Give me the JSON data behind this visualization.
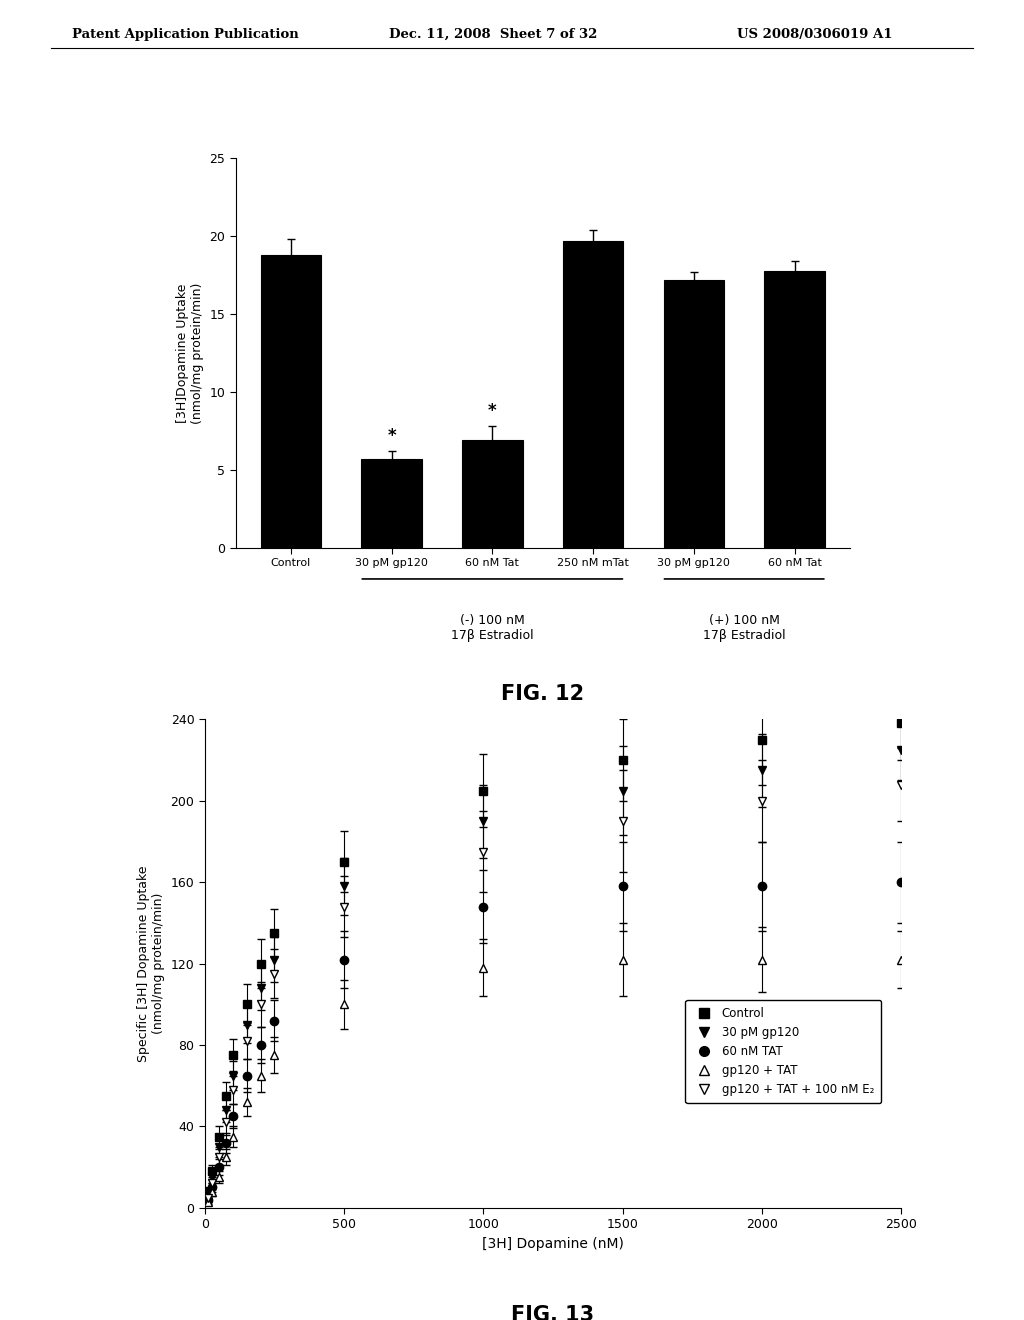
{
  "header_left": "Patent Application Publication",
  "header_mid": "Dec. 11, 2008  Sheet 7 of 32",
  "header_right": "US 2008/0306019 A1",
  "fig12": {
    "categories": [
      "Control",
      "30 pM gp120",
      "60 nM Tat",
      "250 nM mTat",
      "30 pM gp120",
      "60 nM Tat"
    ],
    "values": [
      18.8,
      5.7,
      6.9,
      19.7,
      17.2,
      17.8
    ],
    "errors": [
      1.0,
      0.5,
      0.9,
      0.7,
      0.5,
      0.6
    ],
    "star": [
      false,
      true,
      true,
      false,
      false,
      false
    ],
    "ylabel": "[3H]Dopamine Uptake\n(nmol/mg protein/min)",
    "ylim": [
      0,
      25
    ],
    "yticks": [
      0,
      5,
      10,
      15,
      20,
      25
    ],
    "group1_label": "(-) 100 nM\n17β Estradiol",
    "group2_label": "(+) 100 nM\n17β Estradiol"
  },
  "fig13": {
    "xlabel": "[3H] Dopamine (nM)",
    "ylabel": "Specific [3H] Dopamine Uptake\n(nmol/mg protein/min)",
    "xlim": [
      0,
      2500
    ],
    "ylim": [
      0,
      240
    ],
    "xticks": [
      0,
      500,
      1000,
      1500,
      2000,
      2500
    ],
    "yticks": [
      0,
      40,
      80,
      120,
      160,
      200,
      240
    ],
    "series": [
      {
        "label": "Control",
        "marker": "s",
        "filled": true,
        "x": [
          10,
          25,
          50,
          75,
          100,
          150,
          200,
          250,
          500,
          1000,
          1500,
          2000,
          2500
        ],
        "y": [
          8,
          18,
          35,
          55,
          75,
          100,
          120,
          135,
          170,
          205,
          220,
          230,
          238
        ],
        "yerr": [
          2,
          3,
          5,
          7,
          8,
          10,
          12,
          12,
          15,
          18,
          20,
          22,
          18
        ]
      },
      {
        "label": "30 pM gp120",
        "marker": "v",
        "filled": true,
        "x": [
          10,
          25,
          50,
          75,
          100,
          150,
          200,
          250,
          500,
          1000,
          1500,
          2000,
          2500
        ],
        "y": [
          7,
          15,
          30,
          48,
          65,
          90,
          108,
          122,
          158,
          190,
          205,
          215,
          225
        ],
        "yerr": [
          2,
          3,
          5,
          6,
          7,
          9,
          11,
          11,
          14,
          18,
          22,
          18,
          15
        ]
      },
      {
        "label": "60 nM TAT",
        "marker": "o",
        "filled": true,
        "x": [
          10,
          25,
          50,
          75,
          100,
          150,
          200,
          250,
          500,
          1000,
          1500,
          2000,
          2500
        ],
        "y": [
          4,
          10,
          20,
          32,
          45,
          65,
          80,
          92,
          122,
          148,
          158,
          158,
          160
        ],
        "yerr": [
          1,
          2,
          4,
          5,
          6,
          8,
          9,
          10,
          14,
          18,
          22,
          22,
          20
        ]
      },
      {
        "label": "gp120 + TAT",
        "marker": "^",
        "filled": false,
        "x": [
          10,
          25,
          50,
          75,
          100,
          150,
          200,
          250,
          500,
          1000,
          1500,
          2000,
          2500
        ],
        "y": [
          3,
          8,
          15,
          25,
          35,
          52,
          65,
          75,
          100,
          118,
          122,
          122,
          122
        ],
        "yerr": [
          1,
          2,
          3,
          4,
          5,
          7,
          8,
          9,
          12,
          14,
          18,
          16,
          14
        ]
      },
      {
        "label": "gp120 + TAT + 100 nM E₂",
        "marker": "v",
        "filled": false,
        "x": [
          10,
          25,
          50,
          75,
          100,
          150,
          200,
          250,
          500,
          1000,
          1500,
          2000,
          2500
        ],
        "y": [
          5,
          12,
          25,
          42,
          58,
          82,
          100,
          115,
          148,
          175,
          190,
          200,
          208
        ],
        "yerr": [
          1,
          2,
          4,
          6,
          7,
          9,
          11,
          12,
          15,
          20,
          25,
          20,
          18
        ]
      }
    ]
  }
}
